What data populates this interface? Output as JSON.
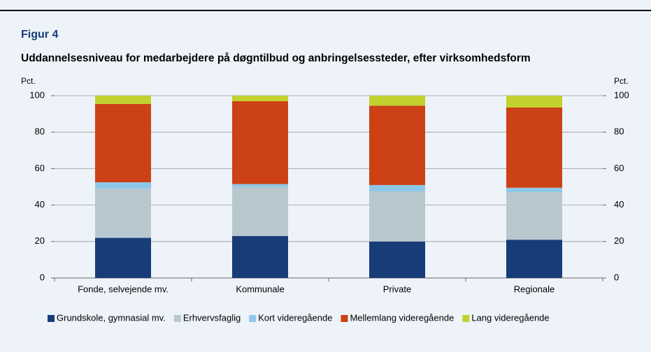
{
  "chart_data": {
    "type": "stacked_bar",
    "label": "Figur 4",
    "title": "Uddannelsesniveau for medarbejdere på døgntilbud og anbringelsessteder, efter virksomhedsform",
    "ylabel": "Pct.",
    "y2label": "Pct.",
    "categories": [
      "Fonde, selvejende mv.",
      "Kommunale",
      "Private",
      "Regionale"
    ],
    "series": [
      {
        "name": "Grundskole, gymnasial mv.",
        "color": "#173c78",
        "values": [
          22,
          23,
          20,
          21
        ]
      },
      {
        "name": "Erhvervsfaglig",
        "color": "#b9c7cf",
        "values": [
          27,
          27,
          27.5,
          26
        ]
      },
      {
        "name": "Kort videregående",
        "color": "#8ec8e8",
        "values": [
          3.5,
          1.5,
          3.5,
          2.5
        ]
      },
      {
        "name": "Mellemlang videregående",
        "color": "#cc4115",
        "values": [
          43,
          45.5,
          43.5,
          44
        ]
      },
      {
        "name": "Lang videregående",
        "color": "#c2d12e",
        "values": [
          4.5,
          3,
          5.5,
          6.5
        ]
      }
    ],
    "ylim": [
      0,
      100
    ],
    "yticks": [
      0,
      20,
      40,
      60,
      80,
      100
    ],
    "y2lim": [
      0,
      100
    ],
    "y2ticks": [
      0,
      20,
      40,
      60,
      80,
      100
    ],
    "grid": true,
    "legend": "bottom"
  }
}
